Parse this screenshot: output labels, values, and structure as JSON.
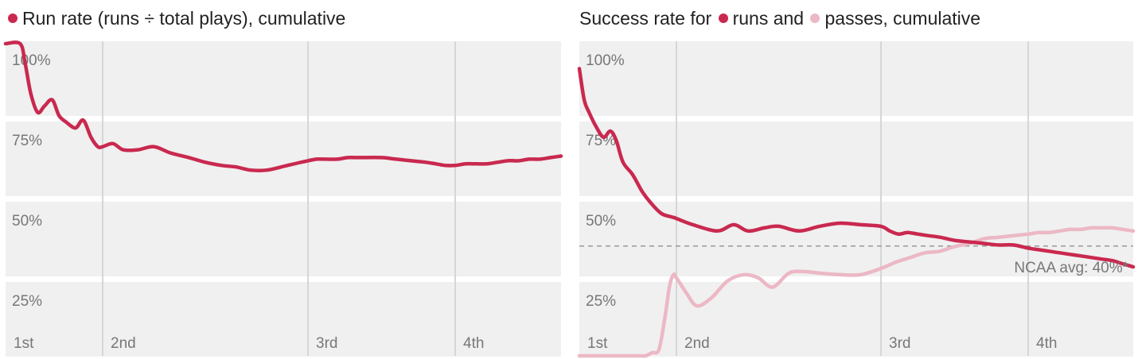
{
  "colors": {
    "runs": "#c9294f",
    "passes": "#ecb8c5",
    "band": "#f0f0f0",
    "quarter_line": "#d6d6d6",
    "label": "#777777",
    "avg_line": "#999999"
  },
  "chart_data": [
    {
      "type": "line",
      "title_parts": [
        "Run rate (runs ÷ total plays), cumulative"
      ],
      "y_ticks": [
        "100%",
        "75%",
        "50%",
        "25%"
      ],
      "ylim": [
        0,
        1
      ],
      "xlim": [
        0,
        4
      ],
      "x_ticks": [
        {
          "label": "1st",
          "x": 0
        },
        {
          "label": "2nd",
          "x": 1
        },
        {
          "label": "3rd",
          "x": 2
        },
        {
          "label": "4th",
          "x": 3
        }
      ],
      "series": [
        {
          "color_key": "runs",
          "x": [
            0,
            0.15,
            0.2,
            0.26,
            0.33,
            0.4,
            0.48,
            0.55,
            0.62,
            0.72,
            0.8,
            0.88,
            0.95,
            1.0,
            1.05,
            1.1,
            1.17,
            1.25,
            1.33,
            1.42,
            1.5,
            1.58,
            1.65,
            1.72,
            1.8,
            1.9,
            2.0,
            2.06,
            2.12,
            2.2,
            2.27,
            2.35,
            2.5,
            2.6,
            2.7,
            2.8,
            2.87,
            2.93,
            3.0,
            3.1,
            3.2,
            3.3,
            3.4,
            3.5,
            3.6,
            3.7,
            3.8,
            3.9,
            4.0
          ],
          "y": [
            1.0,
            1.0,
            0.94,
            0.84,
            0.78,
            0.8,
            0.82,
            0.77,
            0.75,
            0.73,
            0.755,
            0.7,
            0.67,
            0.67,
            0.68,
            0.66,
            0.66,
            0.67,
            0.65,
            0.635,
            0.62,
            0.61,
            0.605,
            0.595,
            0.595,
            0.61,
            0.625,
            0.63,
            0.63,
            0.63,
            0.635,
            0.635,
            0.635,
            0.63,
            0.625,
            0.62,
            0.615,
            0.61,
            0.61,
            0.615,
            0.615,
            0.615,
            0.62,
            0.625,
            0.625,
            0.63,
            0.63,
            0.635,
            0.64
          ]
        }
      ]
    },
    {
      "type": "line",
      "title_parts": [
        "Success rate for ",
        "runs and ",
        "passes, cumulative"
      ],
      "y_ticks": [
        "100%",
        "75%",
        "50%",
        "25%"
      ],
      "ylim": [
        0,
        1
      ],
      "xlim": [
        0,
        4
      ],
      "x_ticks": [
        {
          "label": "1st",
          "x": 0
        },
        {
          "label": "2nd",
          "x": 1
        },
        {
          "label": "3rd",
          "x": 2
        },
        {
          "label": "4th",
          "x": 3
        }
      ],
      "reference_line": {
        "y": 0.4,
        "label": "NCAA avg: 40%*"
      },
      "series": [
        {
          "color_key": "runs",
          "x": [
            0,
            0.05,
            0.1,
            0.18,
            0.25,
            0.32,
            0.38,
            0.45,
            0.55,
            0.65,
            0.75,
            0.85,
            0.95,
            1.0,
            1.08,
            1.2,
            1.28,
            1.35,
            1.43,
            1.5,
            1.6,
            1.7,
            1.8,
            1.9,
            2.0,
            2.06,
            2.12,
            2.18,
            2.25,
            2.32,
            2.4,
            2.5,
            2.6,
            2.7,
            2.8,
            2.9,
            3.0,
            3.1,
            3.2,
            3.3,
            3.4,
            3.5,
            3.6,
            3.7,
            3.8,
            3.9,
            4.0
          ],
          "y": [
            0.92,
            0.82,
            0.78,
            0.73,
            0.7,
            0.72,
            0.69,
            0.62,
            0.58,
            0.525,
            0.485,
            0.455,
            0.445,
            0.44,
            0.42,
            0.4,
            0.42,
            0.4,
            0.41,
            0.415,
            0.4,
            0.415,
            0.425,
            0.42,
            0.415,
            0.4,
            0.39,
            0.395,
            0.39,
            0.385,
            0.38,
            0.37,
            0.365,
            0.36,
            0.355,
            0.355,
            0.345,
            0.34,
            0.335,
            0.33,
            0.325,
            0.32,
            0.315,
            0.31,
            0.305,
            0.295,
            0.285
          ]
        },
        {
          "color_key": "passes",
          "x": [
            0,
            0.6,
            0.68,
            0.75,
            0.82,
            0.88,
            0.93,
            0.97,
            1.0,
            1.05,
            1.1,
            1.17,
            1.25,
            1.33,
            1.4,
            1.47,
            1.55,
            1.62,
            1.7,
            1.8,
            1.9,
            2.0,
            2.1,
            2.2,
            2.3,
            2.4,
            2.5,
            2.6,
            2.7,
            2.8,
            2.9,
            3.0,
            3.1,
            3.2,
            3.3,
            3.4,
            3.5,
            3.6,
            3.7,
            3.8,
            3.9,
            4.0
          ],
          "y": [
            0.0,
            0.0,
            0.0,
            0.01,
            0.02,
            0.12,
            0.225,
            0.26,
            0.25,
            0.2,
            0.16,
            0.185,
            0.24,
            0.26,
            0.25,
            0.22,
            0.265,
            0.27,
            0.265,
            0.26,
            0.26,
            0.28,
            0.3,
            0.315,
            0.33,
            0.335,
            0.35,
            0.36,
            0.375,
            0.38,
            0.385,
            0.39,
            0.395,
            0.395,
            0.4,
            0.405,
            0.405,
            0.41,
            0.41,
            0.41,
            0.405,
            0.4
          ]
        }
      ]
    }
  ]
}
